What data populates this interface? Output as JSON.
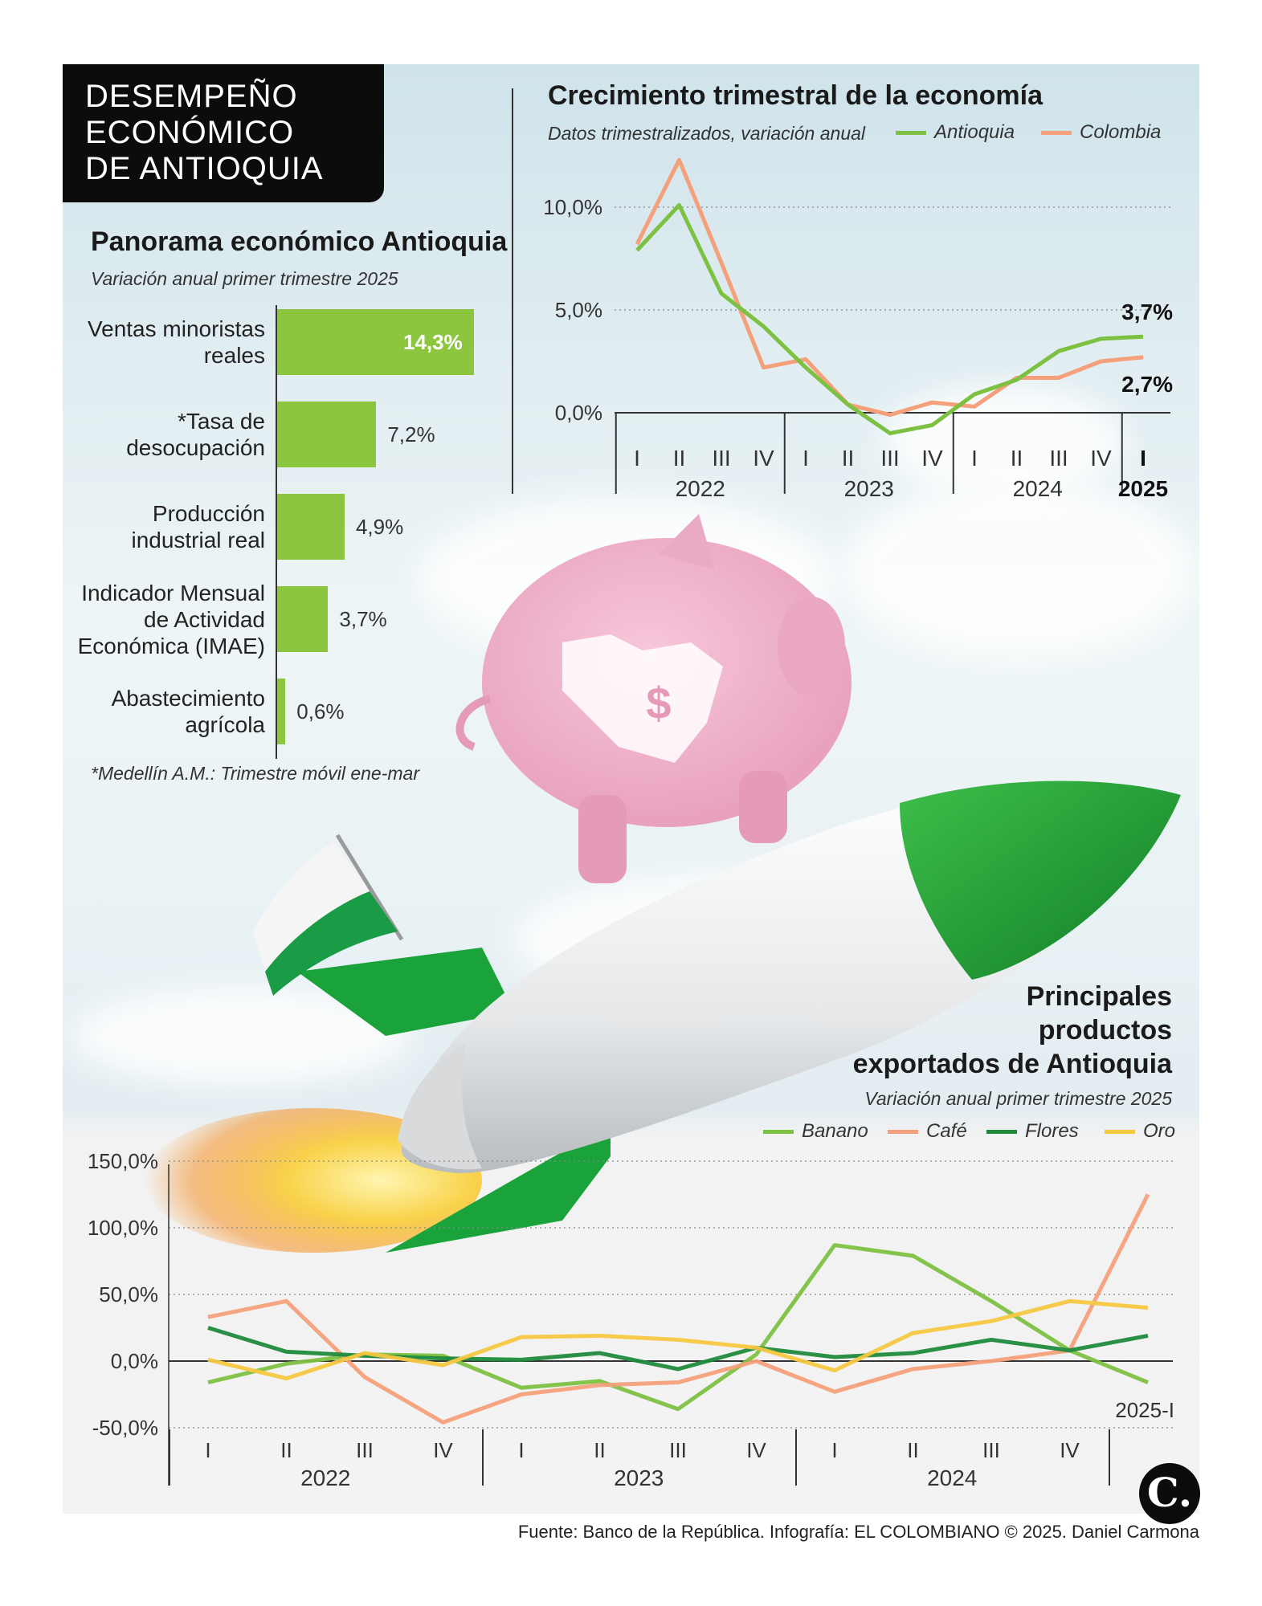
{
  "header": {
    "title_lines": [
      "DESEMPEÑO",
      "ECONÓMICO",
      "DE ANTIOQUIA"
    ]
  },
  "panorama": {
    "title": "Panorama económico Antioquia",
    "subtitle": "Variación anual primer trimestre 2025",
    "footnote": "*Medellín A.M.: Trimestre móvil ene-mar"
  },
  "growth": {
    "title": "Crecimiento trimestral de la economía",
    "subtitle": "Datos trimestralizados, variación anual",
    "end_labels": {
      "antioquia": "3,7%",
      "colombia": "2,7%"
    }
  },
  "exports": {
    "title_lines": [
      "Principales",
      "productos",
      "exportados de Antioquia"
    ],
    "subtitle": "Variación anual primer trimestre 2025",
    "last_period_label": "2025-I"
  },
  "colors": {
    "green": "#8cc63f",
    "antioquia": "#7dc142",
    "colombia": "#f4a07a",
    "banano": "#7dc142",
    "cafe": "#f4a07a",
    "flores": "#1e8a3c",
    "oro": "#f5c842"
  },
  "icons": {
    "logo": "el-colombiano-logo",
    "illustration": "piggy-bank-on-rocket-illustration",
    "flag": "antioquia-flag-icon"
  },
  "footer": {
    "source": "Fuente: Banco de la República. Infografía: EL COLOMBIANO © 2025. Daniel Carmona",
    "logo_letter": "C."
  },
  "chart_data": [
    {
      "type": "bar",
      "orientation": "horizontal",
      "title": "Panorama económico Antioquia",
      "subtitle": "Variación anual primer trimestre 2025",
      "categories": [
        "Ventas minoristas reales",
        "*Tasa de desocupación",
        "Producción industrial real",
        "Indicador Mensual de Actividad Económica (IMAE)",
        "Abastecimiento agrícola"
      ],
      "category_lines": [
        [
          "Ventas minoristas",
          "reales"
        ],
        [
          "*Tasa de",
          "desocupación"
        ],
        [
          "Producción",
          "industrial real"
        ],
        [
          "Indicador Mensual",
          "de Actividad",
          "Económica (IMAE)"
        ],
        [
          "Abastecimiento",
          "agrícola"
        ]
      ],
      "values": [
        14.3,
        7.2,
        4.9,
        3.7,
        0.6
      ],
      "value_labels": [
        "14,3%",
        "7,2%",
        "4,9%",
        "3,7%",
        "0,6%"
      ],
      "xlim": [
        0,
        14.3
      ]
    },
    {
      "type": "line",
      "title": "Crecimiento trimestral de la economía",
      "quarters": [
        "I",
        "II",
        "III",
        "IV",
        "I",
        "II",
        "III",
        "IV",
        "I",
        "II",
        "III",
        "IV",
        "I"
      ],
      "years": [
        "2022",
        "2023",
        "2024",
        "2025"
      ],
      "series": [
        {
          "name": "Antioquia",
          "color": "#7dc142",
          "values": [
            7.9,
            10.1,
            5.8,
            4.2,
            2.2,
            0.4,
            -1.0,
            -0.6,
            0.9,
            1.6,
            3.0,
            3.6,
            3.7
          ]
        },
        {
          "name": "Colombia",
          "color": "#f4a07a",
          "values": [
            8.2,
            12.3,
            7.3,
            2.2,
            2.6,
            0.4,
            -0.1,
            0.5,
            0.3,
            1.7,
            1.7,
            2.5,
            2.7
          ]
        }
      ],
      "y_ticks": [
        0,
        5,
        10
      ],
      "y_tick_labels": [
        "0,0%",
        "5,0%",
        "10,0%"
      ],
      "ylim": [
        -1.3,
        12.5
      ],
      "grid": true,
      "legend": "top"
    },
    {
      "type": "line",
      "title": "Principales productos exportados de Antioquia",
      "quarters": [
        "I",
        "II",
        "III",
        "IV",
        "I",
        "II",
        "III",
        "IV",
        "I",
        "II",
        "III",
        "IV",
        "2025-I"
      ],
      "years": [
        "2022",
        "2023",
        "2024"
      ],
      "series": [
        {
          "name": "Banano",
          "color": "#7dc142",
          "values": [
            -16,
            -2,
            5,
            4,
            -20,
            -15,
            -36,
            5,
            87,
            79,
            45,
            8,
            -16
          ]
        },
        {
          "name": "Café",
          "color": "#f4a07a",
          "values": [
            33,
            45,
            -12,
            -46,
            -25,
            -18,
            -16,
            0,
            -23,
            -6,
            0,
            8,
            125
          ]
        },
        {
          "name": "Flores",
          "color": "#1e8a3c",
          "values": [
            25,
            7,
            4,
            2,
            1,
            6,
            -6,
            10,
            3,
            6,
            16,
            8,
            19
          ]
        },
        {
          "name": "Oro",
          "color": "#f5c842",
          "values": [
            1,
            -13,
            6,
            -3,
            18,
            19,
            16,
            10,
            -7,
            21,
            30,
            45,
            40
          ]
        }
      ],
      "y_ticks": [
        -50,
        0,
        50,
        100,
        150
      ],
      "y_tick_labels": [
        "-50,0%",
        "0,0%",
        "50,0%",
        "100,0%",
        "150,0%"
      ],
      "ylim": [
        -50,
        150
      ],
      "grid": true,
      "legend": "top-right"
    }
  ]
}
